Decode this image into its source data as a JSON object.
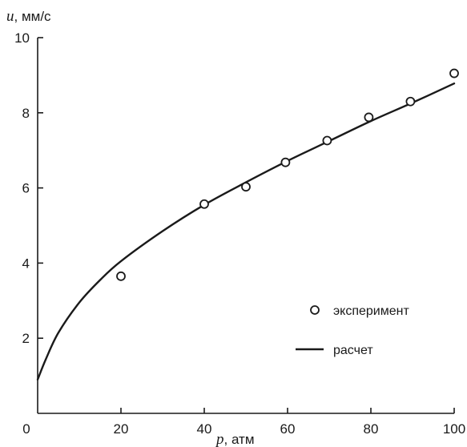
{
  "chart_data": {
    "type": "scatter",
    "xlabel": {
      "var": "p",
      "unit": "атм"
    },
    "ylabel": {
      "var": "u",
      "unit": "мм/с"
    },
    "xlim": [
      0,
      100
    ],
    "ylim": [
      0,
      10
    ],
    "x_ticks": [
      0,
      20,
      40,
      60,
      80,
      100
    ],
    "y_ticks": [
      2,
      4,
      6,
      8,
      10
    ],
    "x_tick_labels": [
      "0",
      "20",
      "40",
      "60",
      "80",
      "100"
    ],
    "y_tick_labels": [
      "2",
      "4",
      "6",
      "8",
      "10"
    ],
    "grid": false,
    "legend_position": "bottom-right",
    "series": [
      {
        "name": "эксперимент",
        "kind": "markers",
        "marker": "open-circle",
        "points": [
          {
            "x": 20,
            "y": 3.65
          },
          {
            "x": 40,
            "y": 5.57
          },
          {
            "x": 50,
            "y": 6.03
          },
          {
            "x": 59.5,
            "y": 6.68
          },
          {
            "x": 69.5,
            "y": 7.26
          },
          {
            "x": 79.5,
            "y": 7.88
          },
          {
            "x": 89.5,
            "y": 8.3
          },
          {
            "x": 100,
            "y": 9.05
          }
        ]
      },
      {
        "name": "расчет",
        "kind": "line",
        "points": [
          {
            "x": 0,
            "y": 0.9
          },
          {
            "x": 2,
            "y": 1.45
          },
          {
            "x": 5,
            "y": 2.15
          },
          {
            "x": 10,
            "y": 2.95
          },
          {
            "x": 15,
            "y": 3.55
          },
          {
            "x": 20,
            "y": 4.05
          },
          {
            "x": 30,
            "y": 4.85
          },
          {
            "x": 40,
            "y": 5.55
          },
          {
            "x": 50,
            "y": 6.15
          },
          {
            "x": 60,
            "y": 6.72
          },
          {
            "x": 70,
            "y": 7.25
          },
          {
            "x": 80,
            "y": 7.78
          },
          {
            "x": 90,
            "y": 8.27
          },
          {
            "x": 100,
            "y": 8.78
          }
        ]
      }
    ]
  }
}
